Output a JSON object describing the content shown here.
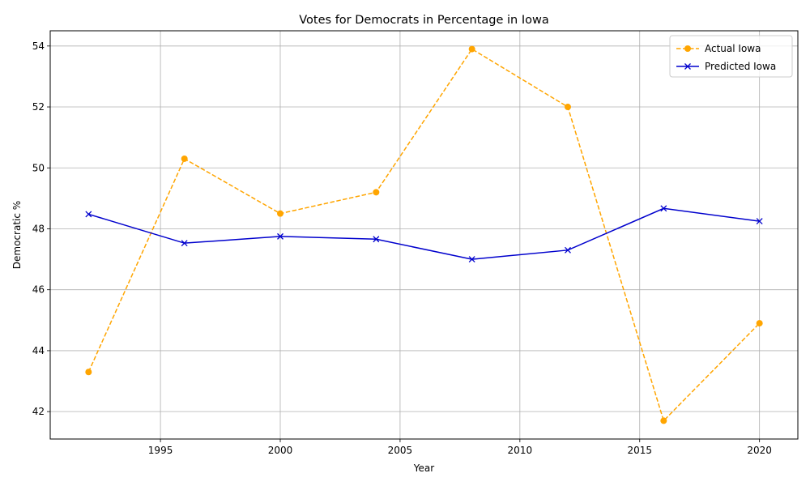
{
  "chart_data": {
    "type": "line",
    "title": "Votes for Democrats in Percentage in Iowa",
    "xlabel": "Year",
    "ylabel": "Democratic %",
    "xlim": [
      1990.4,
      2021.6
    ],
    "ylim": [
      41.1,
      54.5
    ],
    "xticks": [
      1995,
      2000,
      2005,
      2010,
      2015,
      2020
    ],
    "yticks": [
      42,
      44,
      46,
      48,
      50,
      52,
      54
    ],
    "grid": true,
    "legend_position": "top-right",
    "x": [
      1992,
      1996,
      2000,
      2004,
      2008,
      2012,
      2016,
      2020
    ],
    "series": [
      {
        "name": "Actual Iowa",
        "color": "#ffa500",
        "line_style": "dashed",
        "marker": "circle",
        "values": [
          43.3,
          50.3,
          48.5,
          49.2,
          53.9,
          52.0,
          41.7,
          44.9
        ]
      },
      {
        "name": "Predicted Iowa",
        "color": "#0000cd",
        "line_style": "solid",
        "marker": "x",
        "values": [
          48.48,
          47.53,
          47.75,
          47.66,
          47.0,
          47.3,
          48.67,
          48.25
        ]
      }
    ]
  }
}
